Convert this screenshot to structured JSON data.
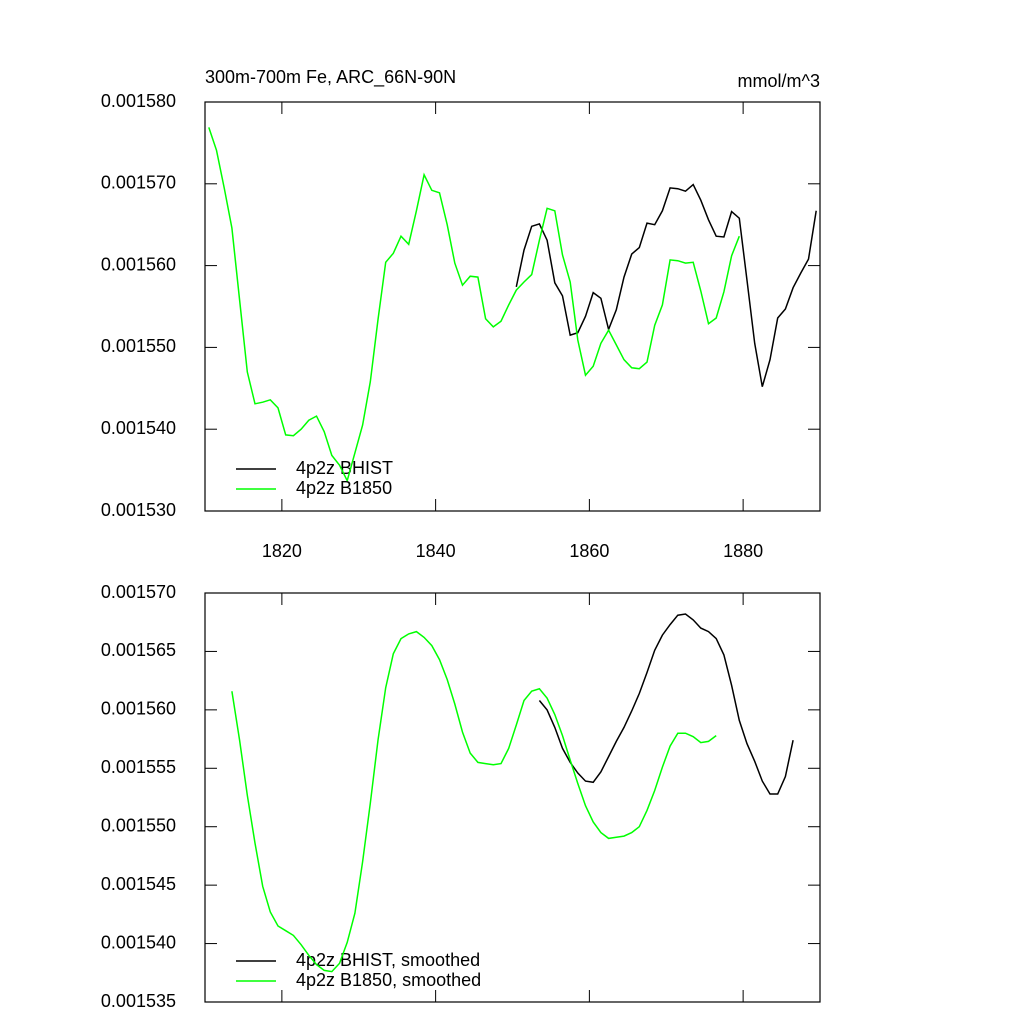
{
  "chart_data": [
    {
      "type": "line",
      "title": "300m-700m Fe, ARC_66N-90N",
      "units": "mmol/m^3",
      "xlim": [
        1810,
        1890
      ],
      "xticks": [
        1820,
        1840,
        1860,
        1880
      ],
      "ylim": [
        0.00153,
        0.00158
      ],
      "yticks": [
        {
          "value": 0.00153,
          "label": "0.001530"
        },
        {
          "value": 0.00154,
          "label": "0.001540"
        },
        {
          "value": 0.00155,
          "label": "0.001550"
        },
        {
          "value": 0.00156,
          "label": "0.001560"
        },
        {
          "value": 0.00157,
          "label": "0.001570"
        },
        {
          "value": 0.00158,
          "label": "0.001580"
        }
      ],
      "series": [
        {
          "name": "4p2z BHIST",
          "color": "#000000",
          "x": [
            1850.5,
            1851.5,
            1852.5,
            1853.5,
            1854.5,
            1855.5,
            1856.5,
            1857.5,
            1858.5,
            1859.5,
            1860.5,
            1861.5,
            1862.5,
            1863.5,
            1864.5,
            1865.5,
            1866.5,
            1867.5,
            1868.5,
            1869.5,
            1870.5,
            1871.5,
            1872.5,
            1873.5,
            1874.5,
            1875.5,
            1876.5,
            1877.5,
            1878.5,
            1879.5,
            1880.5,
            1881.5,
            1882.5,
            1883.5,
            1884.5,
            1885.5,
            1886.5,
            1887.5,
            1888.5,
            1889.5
          ],
          "values": [
            0.0015574,
            0.0015619,
            0.0015648,
            0.0015651,
            0.0015631,
            0.0015579,
            0.0015563,
            0.0015515,
            0.0015518,
            0.0015538,
            0.0015567,
            0.001556,
            0.0015522,
            0.0015546,
            0.0015586,
            0.0015614,
            0.0015622,
            0.0015652,
            0.001565,
            0.0015667,
            0.0015695,
            0.0015694,
            0.0015691,
            0.0015699,
            0.001568,
            0.0015656,
            0.0015636,
            0.0015635,
            0.0015666,
            0.0015658,
            0.0015582,
            0.0015505,
            0.0015452,
            0.0015485,
            0.0015536,
            0.0015547,
            0.0015573,
            0.0015591,
            0.0015608,
            0.0015667
          ]
        },
        {
          "name": "4p2z B1850",
          "color": "#00ff00",
          "x": [
            1810.5,
            1811.5,
            1812.5,
            1813.5,
            1814.5,
            1815.5,
            1816.5,
            1817.5,
            1818.5,
            1819.5,
            1820.5,
            1821.5,
            1822.5,
            1823.5,
            1824.5,
            1825.5,
            1826.5,
            1827.5,
            1828.5,
            1829.5,
            1830.5,
            1831.5,
            1832.5,
            1833.5,
            1834.5,
            1835.5,
            1836.5,
            1837.5,
            1838.5,
            1839.5,
            1840.5,
            1841.5,
            1842.5,
            1843.5,
            1844.5,
            1845.5,
            1846.5,
            1847.5,
            1848.5,
            1849.5,
            1850.5,
            1851.5,
            1852.5,
            1853.5,
            1854.5,
            1855.5,
            1856.5,
            1857.5,
            1858.5,
            1859.5,
            1860.5,
            1861.5,
            1862.5,
            1863.5,
            1864.5,
            1865.5,
            1866.5,
            1867.5,
            1868.5,
            1869.5,
            1870.5,
            1871.5,
            1872.5,
            1873.5,
            1874.5,
            1875.5,
            1876.5,
            1877.5,
            1878.5,
            1879.5
          ],
          "values": [
            0.0015769,
            0.0015741,
            0.0015695,
            0.0015646,
            0.0015558,
            0.001547,
            0.0015431,
            0.0015433,
            0.0015436,
            0.0015426,
            0.0015393,
            0.0015392,
            0.00154,
            0.0015411,
            0.0015416,
            0.0015397,
            0.0015368,
            0.0015356,
            0.0015337,
            0.0015371,
            0.0015405,
            0.0015458,
            0.0015534,
            0.0015604,
            0.0015615,
            0.0015636,
            0.0015626,
            0.0015667,
            0.0015711,
            0.0015692,
            0.0015689,
            0.001565,
            0.0015603,
            0.0015576,
            0.0015587,
            0.0015586,
            0.0015535,
            0.0015525,
            0.0015532,
            0.0015552,
            0.001557,
            0.001558,
            0.0015589,
            0.0015631,
            0.001567,
            0.0015667,
            0.0015613,
            0.001558,
            0.0015509,
            0.0015466,
            0.0015477,
            0.0015505,
            0.0015521,
            0.0015503,
            0.0015485,
            0.0015475,
            0.0015474,
            0.0015482,
            0.0015527,
            0.0015552,
            0.0015607,
            0.0015606,
            0.0015603,
            0.0015604,
            0.0015569,
            0.0015529,
            0.0015536,
            0.0015568,
            0.0015612,
            0.0015636
          ]
        }
      ]
    },
    {
      "type": "line",
      "xlim": [
        1810,
        1890
      ],
      "xticks": [
        1820,
        1840,
        1860,
        1880
      ],
      "xtick_labels": false,
      "ylim": [
        0.001535,
        0.00157
      ],
      "yticks": [
        {
          "value": 0.001535,
          "label": "0.001535"
        },
        {
          "value": 0.00154,
          "label": "0.001540"
        },
        {
          "value": 0.001545,
          "label": "0.001545"
        },
        {
          "value": 0.00155,
          "label": "0.001550"
        },
        {
          "value": 0.001555,
          "label": "0.001555"
        },
        {
          "value": 0.00156,
          "label": "0.001560"
        },
        {
          "value": 0.001565,
          "label": "0.001565"
        },
        {
          "value": 0.00157,
          "label": "0.001570"
        }
      ],
      "series": [
        {
          "name": "4p2z BHIST, smoothed",
          "color": "#000000",
          "x": [
            1853.5,
            1854.5,
            1855.5,
            1856.5,
            1857.5,
            1858.5,
            1859.5,
            1860.5,
            1861.5,
            1862.5,
            1863.5,
            1864.5,
            1865.5,
            1866.5,
            1867.5,
            1868.5,
            1869.5,
            1870.5,
            1871.5,
            1872.5,
            1873.5,
            1874.5,
            1875.5,
            1876.5,
            1877.5,
            1878.5,
            1879.5,
            1880.5,
            1881.5,
            1882.5,
            1883.5,
            1884.5,
            1885.5,
            1886.5
          ],
          "values": [
            0.0015608,
            0.00156,
            0.0015585,
            0.0015567,
            0.0015555,
            0.0015546,
            0.0015539,
            0.0015538,
            0.0015547,
            0.001556,
            0.0015573,
            0.0015585,
            0.0015599,
            0.0015614,
            0.0015632,
            0.0015651,
            0.0015664,
            0.0015673,
            0.0015681,
            0.0015682,
            0.0015677,
            0.001567,
            0.0015667,
            0.0015661,
            0.0015647,
            0.0015621,
            0.0015591,
            0.0015571,
            0.0015556,
            0.0015539,
            0.0015528,
            0.0015528,
            0.0015543,
            0.0015574
          ]
        },
        {
          "name": "4p2z B1850, smoothed",
          "color": "#00ff00",
          "x": [
            1813.5,
            1814.5,
            1815.5,
            1816.5,
            1817.5,
            1818.5,
            1819.5,
            1820.5,
            1821.5,
            1822.5,
            1823.5,
            1824.5,
            1825.5,
            1826.5,
            1827.5,
            1828.5,
            1829.5,
            1830.5,
            1831.5,
            1832.5,
            1833.5,
            1834.5,
            1835.5,
            1836.5,
            1837.5,
            1838.5,
            1839.5,
            1840.5,
            1841.5,
            1842.5,
            1843.5,
            1844.5,
            1845.5,
            1846.5,
            1847.5,
            1848.5,
            1849.5,
            1850.5,
            1851.5,
            1852.5,
            1853.5,
            1854.5,
            1855.5,
            1856.5,
            1857.5,
            1858.5,
            1859.5,
            1860.5,
            1861.5,
            1862.5,
            1863.5,
            1864.5,
            1865.5,
            1866.5,
            1867.5,
            1868.5,
            1869.5,
            1870.5,
            1871.5,
            1872.5,
            1873.5,
            1874.5,
            1875.5,
            1876.5
          ],
          "values": [
            0.0015616,
            0.0015574,
            0.0015527,
            0.0015486,
            0.0015449,
            0.0015427,
            0.0015415,
            0.0015411,
            0.0015407,
            0.0015399,
            0.001539,
            0.0015382,
            0.0015377,
            0.0015376,
            0.0015383,
            0.0015401,
            0.0015426,
            0.001547,
            0.001552,
            0.0015574,
            0.0015619,
            0.0015648,
            0.0015661,
            0.0015665,
            0.0015667,
            0.0015662,
            0.0015655,
            0.0015643,
            0.0015626,
            0.0015605,
            0.0015581,
            0.0015563,
            0.0015555,
            0.0015554,
            0.0015553,
            0.0015554,
            0.0015567,
            0.0015587,
            0.0015608,
            0.0015616,
            0.0015618,
            0.001561,
            0.0015596,
            0.0015578,
            0.0015557,
            0.0015537,
            0.0015518,
            0.0015504,
            0.0015495,
            0.001549,
            0.0015491,
            0.0015492,
            0.0015495,
            0.00155,
            0.0015514,
            0.0015531,
            0.0015551,
            0.0015569,
            0.001558,
            0.001558,
            0.0015577,
            0.0015572,
            0.0015573,
            0.0015578
          ]
        }
      ]
    }
  ]
}
